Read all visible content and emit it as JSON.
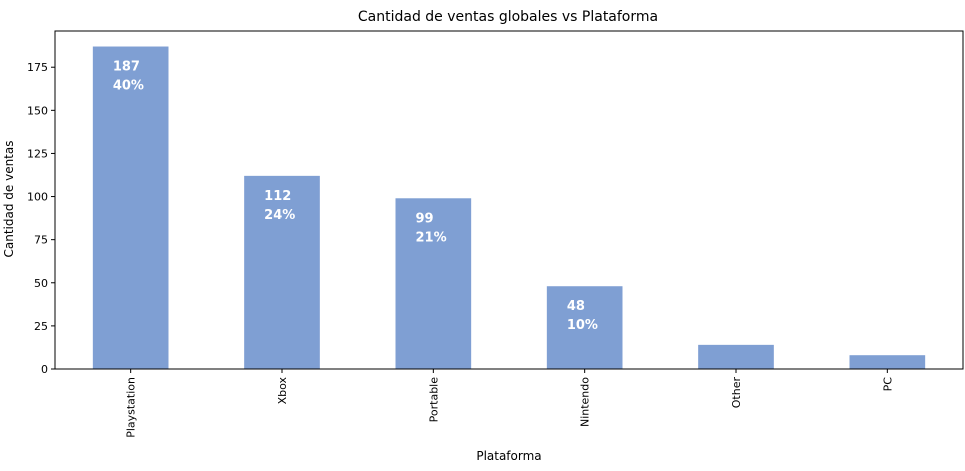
{
  "chart_data": {
    "type": "bar",
    "title": "Cantidad de ventas globales vs Plataforma",
    "xlabel": "Plataforma",
    "ylabel": "Cantidad de ventas",
    "categories": [
      "Playstation",
      "Xbox",
      "Portable",
      "Nintendo",
      "Other",
      "PC"
    ],
    "values": [
      187,
      112,
      99,
      48,
      14,
      8
    ],
    "bar_labels": [
      {
        "value": "187",
        "pct": "40%"
      },
      {
        "value": "112",
        "pct": "24%"
      },
      {
        "value": "99",
        "pct": "21%"
      },
      {
        "value": "48",
        "pct": "10%"
      },
      null,
      null
    ],
    "ylim": [
      0,
      196
    ],
    "yticks": [
      0,
      25,
      50,
      75,
      100,
      125,
      150,
      175
    ],
    "bar_color": "#7f9fd3",
    "grid": false,
    "legend": "none"
  }
}
